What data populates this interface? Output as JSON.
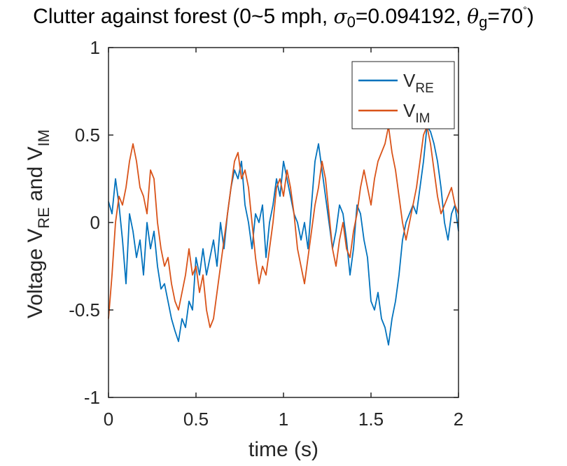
{
  "chart_data": {
    "type": "line",
    "title_parts": {
      "prefix": "Clutter against forest (0~5 mph, ",
      "sigma_symbol": "σ",
      "sigma_sub": "0",
      "sigma_value": "=0.094192, ",
      "theta_symbol": "θ",
      "theta_sub": "g",
      "theta_value": "=70",
      "degree": "°",
      "suffix": ")"
    },
    "xlabel": "time (s)",
    "ylabel_parts": {
      "a": "Voltage V",
      "a_sub": "RE",
      "b": " and V",
      "b_sub": "IM"
    },
    "xlim": [
      0,
      2
    ],
    "ylim": [
      -1,
      1
    ],
    "xticks": [
      "0",
      "0.5",
      "1",
      "1.5",
      "2"
    ],
    "yticks": [
      "-1",
      "-0.5",
      "0",
      "0.5",
      "1"
    ],
    "xtick_values": [
      0,
      0.5,
      1,
      1.5,
      2
    ],
    "ytick_values": [
      -1,
      -0.5,
      0,
      0.5,
      1
    ],
    "grid": false,
    "legend_position": "top-right",
    "series": [
      {
        "name": "V",
        "name_sub": "RE",
        "color": "#0072BD",
        "x": [
          0.0,
          0.02,
          0.04,
          0.06,
          0.08,
          0.1,
          0.12,
          0.14,
          0.16,
          0.18,
          0.2,
          0.22,
          0.24,
          0.26,
          0.28,
          0.3,
          0.32,
          0.34,
          0.36,
          0.38,
          0.4,
          0.42,
          0.44,
          0.46,
          0.48,
          0.5,
          0.52,
          0.54,
          0.56,
          0.58,
          0.6,
          0.62,
          0.64,
          0.66,
          0.68,
          0.7,
          0.72,
          0.74,
          0.76,
          0.78,
          0.8,
          0.82,
          0.84,
          0.86,
          0.88,
          0.9,
          0.92,
          0.94,
          0.96,
          0.98,
          1.0,
          1.02,
          1.04,
          1.06,
          1.08,
          1.1,
          1.12,
          1.14,
          1.16,
          1.18,
          1.2,
          1.22,
          1.24,
          1.26,
          1.28,
          1.3,
          1.32,
          1.34,
          1.36,
          1.38,
          1.4,
          1.42,
          1.44,
          1.46,
          1.48,
          1.5,
          1.52,
          1.54,
          1.56,
          1.58,
          1.6,
          1.62,
          1.64,
          1.66,
          1.68,
          1.7,
          1.72,
          1.74,
          1.76,
          1.78,
          1.8,
          1.82,
          1.84,
          1.86,
          1.88,
          1.9,
          1.92,
          1.94,
          1.96,
          1.98,
          2.0
        ],
        "y": [
          0.12,
          0.05,
          0.25,
          0.1,
          -0.1,
          -0.35,
          0.05,
          -0.05,
          -0.2,
          -0.1,
          -0.3,
          0.0,
          -0.15,
          -0.05,
          -0.25,
          -0.38,
          -0.35,
          -0.45,
          -0.55,
          -0.62,
          -0.68,
          -0.55,
          -0.6,
          -0.45,
          -0.5,
          -0.2,
          -0.3,
          -0.15,
          -0.3,
          -0.2,
          -0.1,
          -0.25,
          0.0,
          -0.15,
          0.05,
          0.2,
          0.3,
          0.25,
          0.35,
          0.1,
          0.0,
          -0.15,
          0.05,
          0.0,
          0.1,
          -0.2,
          0.0,
          0.1,
          0.25,
          0.15,
          0.35,
          0.25,
          0.15,
          0.05,
          0.0,
          -0.1,
          0.0,
          -0.15,
          0.1,
          0.35,
          0.45,
          0.3,
          0.15,
          0.0,
          -0.15,
          -0.05,
          0.1,
          0.05,
          -0.1,
          -0.3,
          -0.15,
          0.1,
          0.05,
          -0.1,
          -0.2,
          -0.45,
          -0.5,
          -0.4,
          -0.55,
          -0.6,
          -0.7,
          -0.55,
          -0.45,
          -0.3,
          -0.1,
          0.0,
          0.05,
          0.1,
          0.05,
          0.2,
          0.35,
          0.55,
          0.52,
          0.45,
          0.35,
          0.2,
          0.0,
          -0.1,
          0.05,
          0.1,
          -0.05
        ]
      },
      {
        "name": "V",
        "name_sub": "IM",
        "color": "#D95319",
        "x": [
          0.0,
          0.02,
          0.04,
          0.06,
          0.08,
          0.1,
          0.12,
          0.14,
          0.16,
          0.18,
          0.2,
          0.22,
          0.24,
          0.26,
          0.28,
          0.3,
          0.32,
          0.34,
          0.36,
          0.38,
          0.4,
          0.42,
          0.44,
          0.46,
          0.48,
          0.5,
          0.52,
          0.54,
          0.56,
          0.58,
          0.6,
          0.62,
          0.64,
          0.66,
          0.68,
          0.7,
          0.72,
          0.74,
          0.76,
          0.78,
          0.8,
          0.82,
          0.84,
          0.86,
          0.88,
          0.9,
          0.92,
          0.94,
          0.96,
          0.98,
          1.0,
          1.02,
          1.04,
          1.06,
          1.08,
          1.1,
          1.12,
          1.14,
          1.16,
          1.18,
          1.2,
          1.22,
          1.24,
          1.26,
          1.28,
          1.3,
          1.32,
          1.34,
          1.36,
          1.38,
          1.4,
          1.42,
          1.44,
          1.46,
          1.48,
          1.5,
          1.52,
          1.54,
          1.56,
          1.58,
          1.6,
          1.62,
          1.64,
          1.66,
          1.68,
          1.7,
          1.72,
          1.74,
          1.76,
          1.78,
          1.8,
          1.82,
          1.84,
          1.86,
          1.88,
          1.9,
          1.92,
          1.94,
          1.96,
          1.98,
          2.0
        ],
        "y": [
          -0.55,
          -0.3,
          0.0,
          0.15,
          0.1,
          0.2,
          0.35,
          0.45,
          0.35,
          0.2,
          0.15,
          0.05,
          0.3,
          0.25,
          0.0,
          -0.15,
          -0.25,
          -0.2,
          -0.35,
          -0.45,
          -0.5,
          -0.4,
          -0.3,
          -0.15,
          -0.3,
          -0.25,
          -0.4,
          -0.3,
          -0.5,
          -0.6,
          -0.55,
          -0.4,
          -0.25,
          -0.1,
          0.05,
          0.2,
          0.35,
          0.4,
          0.25,
          0.3,
          0.2,
          0.0,
          -0.2,
          -0.35,
          -0.25,
          -0.3,
          -0.15,
          0.0,
          0.2,
          0.25,
          0.15,
          0.3,
          0.2,
          0.05,
          -0.15,
          -0.25,
          -0.35,
          -0.2,
          -0.05,
          0.1,
          0.2,
          0.35,
          0.25,
          0.05,
          -0.15,
          -0.25,
          -0.1,
          0.0,
          -0.15,
          -0.2,
          -0.05,
          0.05,
          0.2,
          0.3,
          0.2,
          0.1,
          0.25,
          0.35,
          0.4,
          0.45,
          0.55,
          0.4,
          0.3,
          0.15,
          0.0,
          -0.1,
          0.0,
          0.1,
          0.2,
          0.35,
          0.5,
          0.55,
          0.45,
          0.3,
          0.15,
          0.05,
          0.1,
          0.15,
          0.2,
          0.1,
          0.05
        ]
      }
    ]
  }
}
